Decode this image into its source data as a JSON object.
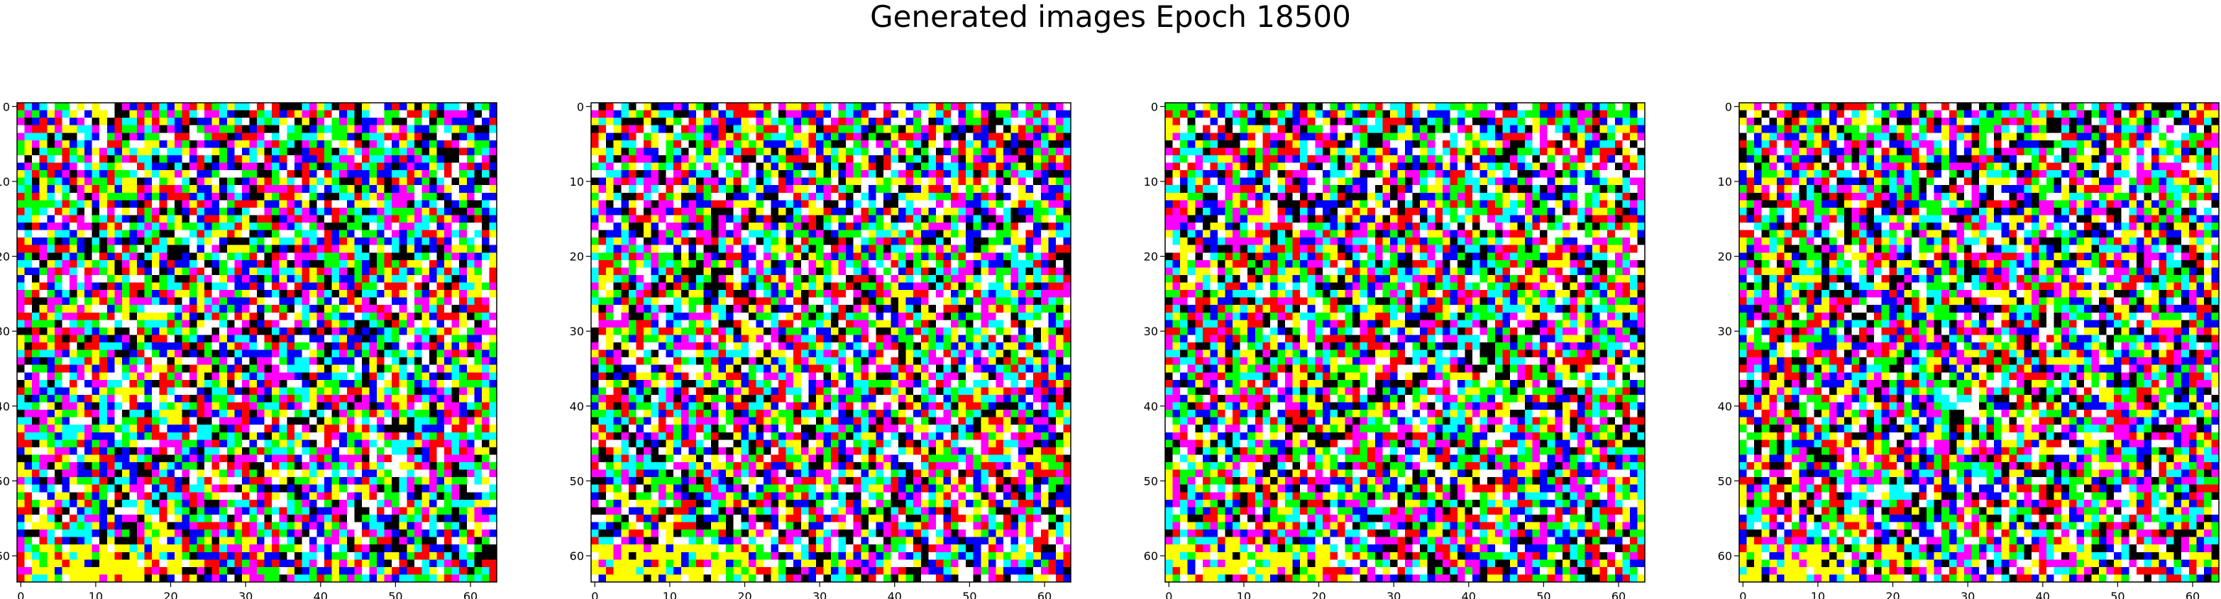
{
  "figure": {
    "title": "Generated images Epoch 18500"
  },
  "chart_data": [
    {
      "type": "heatmap",
      "image": "generated-sample-1",
      "xlim": [
        -0.5,
        63.5
      ],
      "ylim": [
        63.5,
        -0.5
      ],
      "x_ticks": [
        0,
        10,
        20,
        30,
        40,
        50,
        60
      ],
      "y_ticks": [
        0,
        10,
        20,
        30,
        40,
        50,
        60
      ],
      "x_tick_labels": [
        "0",
        "10",
        "20",
        "30",
        "40",
        "50",
        "60"
      ],
      "y_tick_labels": [
        "0",
        "10",
        "20",
        "30",
        "40",
        "50",
        "60"
      ],
      "grid": false,
      "palette": [
        "#ff0000",
        "#00ff00",
        "#0000ff",
        "#ffff00",
        "#00ffff",
        "#ff00ff",
        "#ffffff",
        "#000000"
      ]
    },
    {
      "type": "heatmap",
      "image": "generated-sample-2",
      "xlim": [
        -0.5,
        63.5
      ],
      "ylim": [
        63.5,
        -0.5
      ],
      "x_ticks": [
        0,
        10,
        20,
        30,
        40,
        50,
        60
      ],
      "y_ticks": [
        0,
        10,
        20,
        30,
        40,
        50,
        60
      ],
      "x_tick_labels": [
        "0",
        "10",
        "20",
        "30",
        "40",
        "50",
        "60"
      ],
      "y_tick_labels": [
        "0",
        "10",
        "20",
        "30",
        "40",
        "50",
        "60"
      ],
      "grid": false,
      "palette": [
        "#ff0000",
        "#00ff00",
        "#0000ff",
        "#ffff00",
        "#00ffff",
        "#ff00ff",
        "#ffffff",
        "#000000"
      ]
    },
    {
      "type": "heatmap",
      "image": "generated-sample-3",
      "xlim": [
        -0.5,
        63.5
      ],
      "ylim": [
        63.5,
        -0.5
      ],
      "x_ticks": [
        0,
        10,
        20,
        30,
        40,
        50,
        60
      ],
      "y_ticks": [
        0,
        10,
        20,
        30,
        40,
        50,
        60
      ],
      "x_tick_labels": [
        "0",
        "10",
        "20",
        "30",
        "40",
        "50",
        "60"
      ],
      "y_tick_labels": [
        "0",
        "10",
        "20",
        "30",
        "40",
        "50",
        "60"
      ],
      "grid": false,
      "palette": [
        "#ff0000",
        "#00ff00",
        "#0000ff",
        "#ffff00",
        "#00ffff",
        "#ff00ff",
        "#ffffff",
        "#000000"
      ]
    },
    {
      "type": "heatmap",
      "image": "generated-sample-4",
      "xlim": [
        -0.5,
        63.5
      ],
      "ylim": [
        63.5,
        -0.5
      ],
      "x_ticks": [
        0,
        10,
        20,
        30,
        40,
        50,
        60
      ],
      "y_ticks": [
        0,
        10,
        20,
        30,
        40,
        50,
        60
      ],
      "x_tick_labels": [
        "0",
        "10",
        "20",
        "30",
        "40",
        "50",
        "60"
      ],
      "y_tick_labels": [
        "0",
        "10",
        "20",
        "30",
        "40",
        "50",
        "60"
      ],
      "grid": false,
      "palette": [
        "#ff0000",
        "#00ff00",
        "#0000ff",
        "#ffff00",
        "#00ffff",
        "#ff00ff",
        "#ffffff",
        "#000000"
      ]
    }
  ]
}
